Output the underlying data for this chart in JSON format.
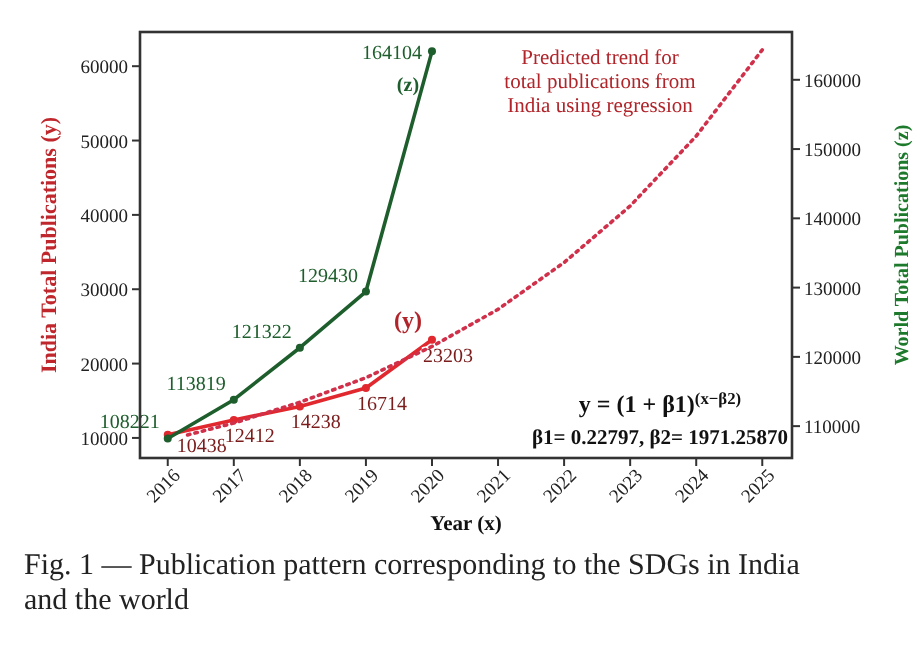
{
  "chart_data": {
    "type": "line",
    "xlabel": "Year (x)",
    "ylabel": "India Total Publications (y)",
    "y2label": "World Total Publications (z)",
    "xlim": [
      2015.58,
      2025.45
    ],
    "xticks": [
      2016,
      2017,
      2018,
      2019,
      2020,
      2021,
      2022,
      2023,
      2024,
      2025
    ],
    "ylim": [
      7300,
      64600
    ],
    "yticks": [
      10000,
      20000,
      30000,
      40000,
      50000,
      60000
    ],
    "y2lim": [
      105400,
      166900
    ],
    "y2ticks": [
      110000,
      120000,
      130000,
      140000,
      150000,
      160000
    ],
    "grid": false,
    "marker": "circle",
    "series": [
      {
        "name": "(y)",
        "color": "#e0282e",
        "x": [
          2016,
          2017,
          2018,
          2019,
          2020
        ],
        "values": [
          10438,
          12412,
          14238,
          16714,
          23203
        ],
        "value_labels": [
          "10438",
          "12412",
          "14238",
          "16714",
          "23203"
        ]
      },
      {
        "name": "(z)",
        "color": "#1d5e2c",
        "axis": "y2",
        "x": [
          2016,
          2017,
          2018,
          2019,
          2020
        ],
        "values": [
          108221,
          113819,
          121322,
          129430,
          164104
        ],
        "value_labels": [
          "108221",
          "113819",
          "121322",
          "129430",
          "164104"
        ]
      },
      {
        "color": "#d0304a",
        "line_style": "dotted",
        "marker": "none",
        "x": [
          2016.3,
          2017,
          2018,
          2019,
          2020,
          2021,
          2022,
          2023,
          2024,
          2025
        ],
        "values": [
          10400,
          12000,
          14800,
          18100,
          22300,
          27300,
          33600,
          41200,
          50600,
          62200
        ]
      }
    ],
    "annotations": [
      "Predicted trend for total publications from India using regression",
      "y = (1 + β1)$^{(x−β2)}$",
      "β1= 0.22797, β2= 1971.25870",
      "Fig. 1 — Publication pattern corresponding to the SDGs in India and the world"
    ]
  }
}
